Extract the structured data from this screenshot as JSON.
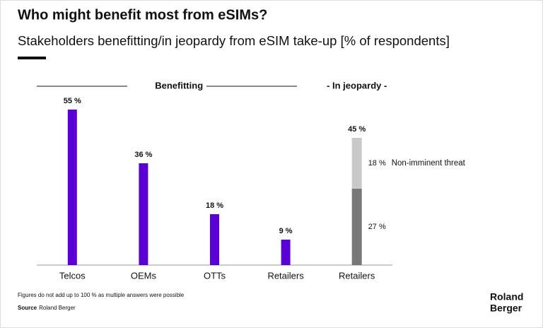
{
  "chart_data": {
    "type": "bar",
    "title": "Who might benefit most from eSIMs?",
    "subtitle": "Stakeholders benefitting/in jeopardy from eSIM take-up [% of respondents]",
    "group_labels": [
      "Benefitting",
      "- In jeopardy -"
    ],
    "categories": [
      "Telcos",
      "OEMs",
      "OTTs",
      "Retailers",
      "Retailers"
    ],
    "series": [
      {
        "name": "Benefitting",
        "color": "#5a00d4",
        "values": [
          55,
          36,
          18,
          9,
          null
        ],
        "value_labels": [
          "55 %",
          "36 %",
          "18 %",
          "9 %",
          null
        ]
      },
      {
        "color": "#787878",
        "values": [
          null,
          null,
          null,
          null,
          27
        ],
        "value_labels": [
          null,
          null,
          null,
          null,
          "27 %"
        ]
      },
      {
        "name": "Non-imminent threat",
        "color": "#c9c9c9",
        "values": [
          null,
          null,
          null,
          null,
          18
        ],
        "value_labels": [
          null,
          null,
          null,
          null,
          "18 %"
        ]
      }
    ],
    "stack_total": 45,
    "stack_total_label": "45 %",
    "ylim": [
      0,
      60
    ],
    "footnote": "Figures do not add up to 100 % as multiple answers were possible",
    "source_label": "Source",
    "source": "Roland Berger",
    "brand": [
      "Roland",
      "Berger"
    ]
  }
}
